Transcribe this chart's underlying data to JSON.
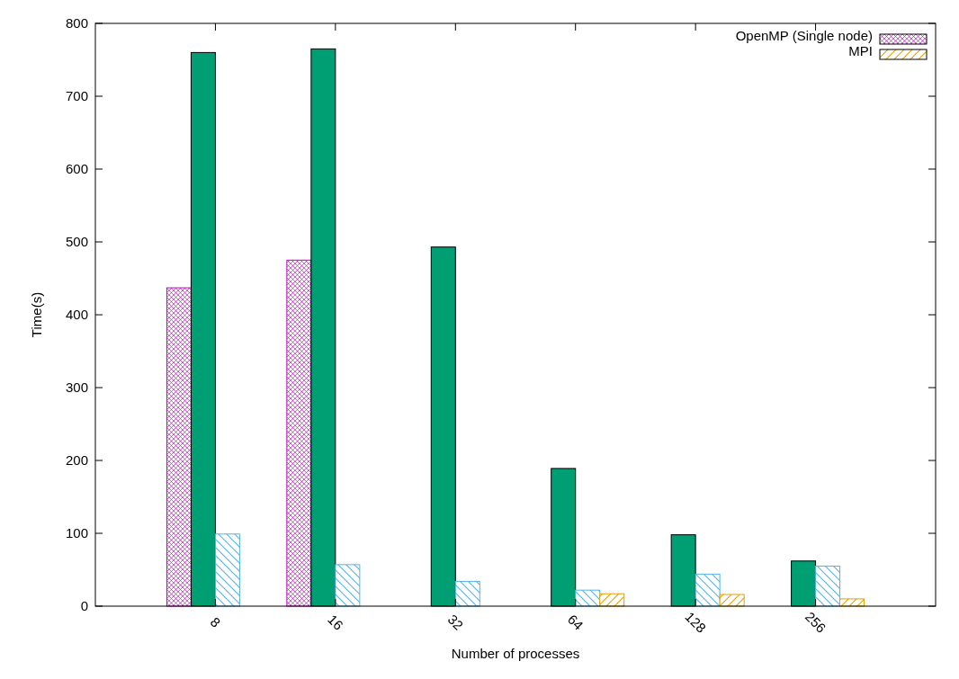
{
  "chart_data": {
    "type": "bar",
    "xlabel": "Number of processes",
    "ylabel": "Time(s)",
    "categories": [
      "8",
      "16",
      "32",
      "64",
      "128",
      "256"
    ],
    "series": [
      {
        "name": "OpenMP (Single node)",
        "color": "#c000c0",
        "values": [
          437,
          475,
          null,
          null,
          null,
          null
        ]
      },
      {
        "color": "#009e73",
        "values": [
          760,
          765,
          493,
          189,
          98,
          62
        ]
      },
      {
        "color": "#56b4e9",
        "values": [
          99,
          57,
          34,
          22,
          44,
          55
        ]
      },
      {
        "name": "MPI",
        "color": "#e69f00",
        "values": [
          null,
          null,
          null,
          17,
          16,
          10
        ]
      }
    ],
    "ylim": [
      0,
      800
    ],
    "yticks": [
      0,
      100,
      200,
      300,
      400,
      500,
      600,
      700,
      800
    ],
    "legend": "top right"
  }
}
